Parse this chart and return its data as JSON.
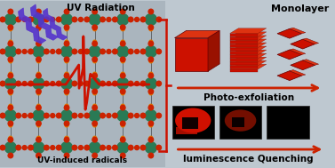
{
  "bg_left": "#aab5be",
  "bg_right": "#bec8d0",
  "title": "UV Radiation",
  "bottom_left_label": "UV-induced radicals",
  "top_right_label": "Monolayer",
  "middle_right_label": "Photo-exfoliation",
  "bottom_right_label": "luminescence Quenching",
  "uv_color": "#5533cc",
  "red_color": "#cc1100",
  "dark_red": "#881100",
  "bright_red": "#ff2200",
  "arrow_color": "#cc2200",
  "bracket_color": "#cc1100",
  "cube_front": "#cc1100",
  "cube_top": "#dd3311",
  "cube_right": "#991100",
  "layer_color": "#cc1100",
  "diamond_color": "#cc1100",
  "lum_img1_bright": "#dd1100",
  "lum_img2_mid": "#881100",
  "atom_green": "#2a7a55",
  "atom_red": "#cc2200",
  "atom_orange": "#dd7700",
  "bond_color": "#333333"
}
